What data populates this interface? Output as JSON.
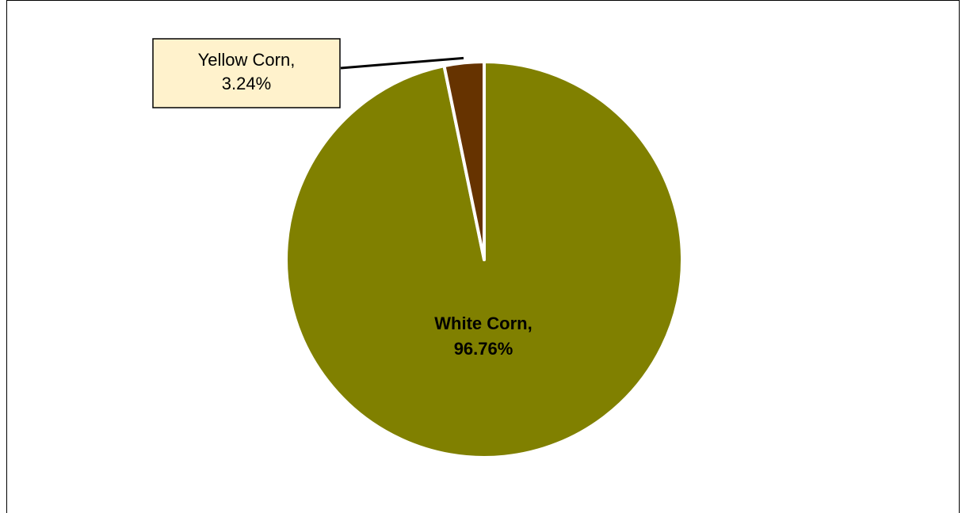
{
  "chart_data": {
    "type": "pie",
    "slices": [
      {
        "name": "White Corn",
        "value": 96.76,
        "label": "White Corn,",
        "pct_label": "96.76%",
        "color": "#808000"
      },
      {
        "name": "Yellow Corn",
        "value": 3.24,
        "label": "Yellow Corn,",
        "pct_label": "3.24%",
        "color": "#663300"
      }
    ],
    "colors": {
      "callout_fill": "#fff2cc",
      "callout_border": "#000000",
      "separator": "#ffffff"
    }
  }
}
